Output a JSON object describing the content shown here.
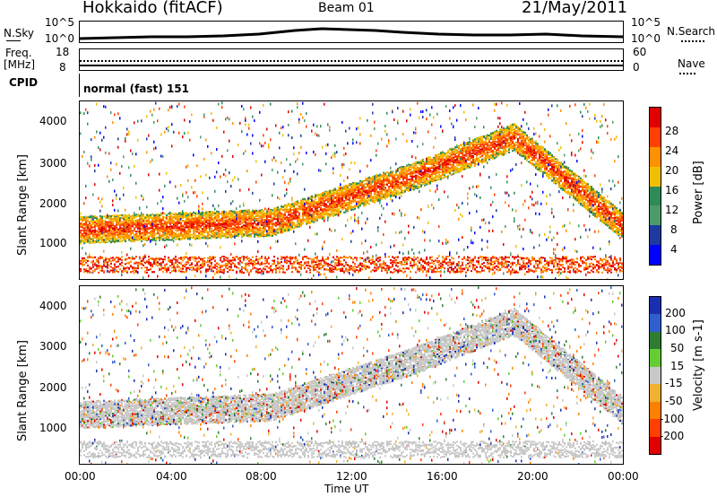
{
  "header": {
    "title": "Hokkaido (fitACF)",
    "beam": "Beam 01",
    "date": "21/May/2011"
  },
  "top_panels": {
    "nsky_label": "N.Sky",
    "nsearch_label": "N.Search",
    "nsky_ticks": [
      "10^5",
      "10^0"
    ],
    "nsearch_ticks": [
      "10^5",
      "10^0"
    ],
    "freq_label_1": "Freq.",
    "freq_label_2": "[MHz]",
    "freq_ticks": [
      "18",
      "8"
    ],
    "nave_label": "Nave",
    "nave_ticks": [
      "60",
      "0"
    ],
    "cpid_label": "CPID",
    "cpid_text": "normal (fast) 151"
  },
  "chart_data": [
    {
      "type": "heatmap",
      "name": "power",
      "ylabel": "Slant Range [km]",
      "yticks": [
        "4000",
        "3000",
        "2000",
        "1000"
      ],
      "xticks": [
        "00:00",
        "04:00",
        "08:00",
        "12:00",
        "16:00",
        "20:00",
        "00:00"
      ],
      "colorbar_label": "Power [dB]",
      "colorbar_ticks": [
        "28",
        "24",
        "20",
        "16",
        "12",
        "8",
        "4"
      ],
      "colorbar_colors": [
        "#e00000",
        "#ff4000",
        "#ff9000",
        "#f0c000",
        "#2e8b57",
        "#4c9a6a",
        "#1e3aa0",
        "#0000ff"
      ]
    },
    {
      "type": "heatmap",
      "name": "velocity",
      "ylabel": "Slant Range [km]",
      "yticks": [
        "4000",
        "3000",
        "2000",
        "1000"
      ],
      "xticks": [
        "00:00",
        "04:00",
        "08:00",
        "12:00",
        "16:00",
        "20:00",
        "00:00"
      ],
      "xlabel": "Time UT",
      "colorbar_label": "Velocity [m s-1]",
      "colorbar_ticks": [
        "200",
        "100",
        "50",
        "15",
        "-15",
        "-50",
        "-100",
        "-200"
      ],
      "colorbar_colors": [
        "#1a2fb0",
        "#2f5fcf",
        "#2e7d32",
        "#66cc33",
        "#c8c8c8",
        "#f0b030",
        "#ff8000",
        "#ff4000",
        "#e00000"
      ]
    }
  ]
}
